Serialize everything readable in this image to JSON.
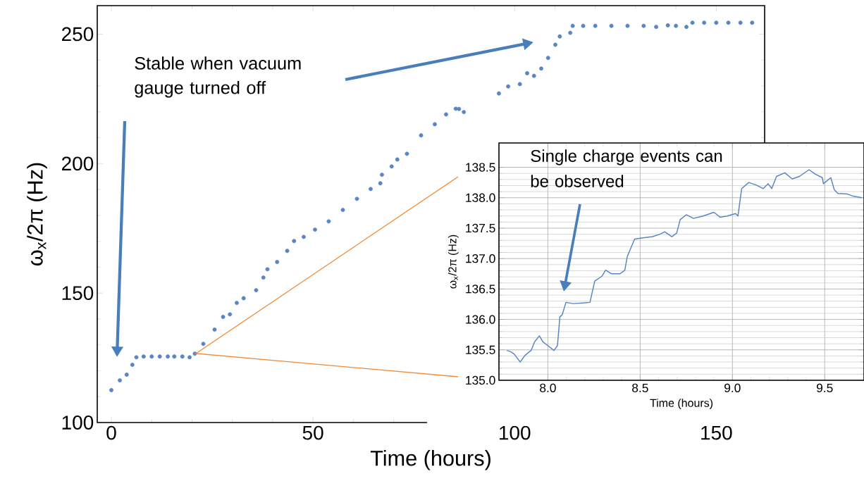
{
  "chart_data": [
    {
      "type": "scatter",
      "xlabel": "Time (hours)",
      "ylabel": "ω$_{x}$/2π (Hz)",
      "xlim": [
        -3.5,
        162
      ],
      "ylim": [
        100,
        261
      ],
      "xticks": [
        0,
        50,
        100,
        150
      ],
      "yticks": [
        100,
        150,
        200,
        250
      ],
      "color": "#5b84c4",
      "x": [
        0,
        2.1,
        3.8,
        5.2,
        6.2,
        8,
        10,
        12,
        14,
        15.6,
        17.6,
        19.4,
        20.7,
        22.8,
        25.6,
        27.7,
        29.4,
        31.1,
        32.8,
        35.9,
        37.7,
        38.7,
        41.1,
        43.6,
        45.3,
        47.7,
        50.5,
        53.9,
        57.4,
        60.9,
        64.3,
        66.7,
        67.1,
        69.5,
        70.9,
        73.3,
        76.8,
        80.2,
        83,
        85.4,
        86.2,
        87.4,
        96.1,
        98.4,
        101.3,
        103.1,
        104.8,
        106.6,
        108.3,
        110.1,
        111.2,
        113.8,
        114.4,
        117,
        120,
        124,
        128,
        132,
        135.1,
        138,
        140,
        142.6,
        144.1,
        147,
        150,
        153,
        156,
        158.9
      ],
      "values": [
        112.5,
        116.3,
        118.5,
        122.3,
        125.2,
        125.5,
        125.5,
        125.5,
        125.5,
        125.5,
        125.5,
        125.2,
        126.6,
        130.4,
        135.9,
        140.8,
        141.8,
        146.2,
        148,
        151.1,
        156,
        159.2,
        162,
        166.3,
        170.1,
        171.7,
        174.5,
        177.7,
        182.1,
        186.4,
        190.2,
        192.4,
        195.7,
        198.9,
        201.6,
        203.8,
        210.9,
        215.2,
        219,
        221.2,
        221.1,
        219.9,
        227.1,
        229.8,
        230.7,
        234.9,
        233.9,
        236.7,
        240.8,
        245.9,
        249.1,
        250.5,
        253.2,
        253.2,
        253.2,
        253.2,
        253.2,
        253.2,
        252.8,
        253.4,
        253.2,
        252.8,
        254.4,
        254.4,
        254.4,
        254.4,
        254.4,
        254.4
      ],
      "annotations": [
        "Stable when vacuum gauge turned off"
      ]
    },
    {
      "type": "line",
      "xlabel": "Time (hours)",
      "ylabel": "ω$_{x}$/2π (Hz)",
      "xlim": [
        7.735,
        9.713
      ],
      "ylim": [
        135,
        138.9
      ],
      "grid": true,
      "color": "#5b84c4",
      "xticks": [
        {
          "value": 8,
          "label": "8.0"
        },
        8.5,
        {
          "value": 9,
          "label": "9.0"
        },
        9.5
      ],
      "yticks": [
        {
          "value": 135,
          "label": "135.0"
        },
        135.5,
        {
          "value": 136,
          "label": "136.0"
        },
        136.5,
        {
          "value": 137,
          "label": "137.0"
        },
        137.5,
        {
          "value": 138,
          "label": "138.0"
        },
        138.5
      ],
      "x": [
        7.778,
        7.798,
        7.818,
        7.85,
        7.876,
        7.909,
        7.928,
        7.954,
        7.974,
        8.0,
        8.033,
        8.052,
        8.065,
        8.078,
        8.098,
        8.137,
        8.189,
        8.228,
        8.254,
        8.293,
        8.313,
        8.346,
        8.391,
        8.417,
        8.43,
        8.47,
        8.515,
        8.567,
        8.607,
        8.633,
        8.672,
        8.698,
        8.717,
        8.75,
        8.789,
        8.841,
        8.9,
        8.933,
        8.972,
        9.017,
        9.03,
        9.05,
        9.089,
        9.128,
        9.167,
        9.193,
        9.213,
        9.239,
        9.284,
        9.324,
        9.363,
        9.415,
        9.448,
        9.487,
        9.493,
        9.533,
        9.552,
        9.572,
        9.624,
        9.65,
        9.702
      ],
      "values": [
        135.49,
        135.47,
        135.43,
        135.3,
        135.41,
        135.49,
        135.63,
        135.73,
        135.63,
        135.57,
        135.49,
        135.57,
        136.04,
        136.08,
        136.28,
        136.26,
        136.27,
        136.28,
        136.63,
        136.71,
        136.81,
        136.75,
        136.75,
        136.81,
        137.03,
        137.32,
        137.34,
        137.36,
        137.4,
        137.44,
        137.36,
        137.42,
        137.64,
        137.72,
        137.66,
        137.7,
        137.76,
        137.68,
        137.7,
        137.74,
        137.7,
        138.15,
        138.25,
        138.21,
        138.15,
        138.23,
        138.15,
        138.35,
        138.41,
        138.31,
        138.35,
        138.46,
        138.39,
        138.33,
        138.23,
        138.33,
        138.13,
        138.07,
        138.06,
        138.03,
        138.0
      ],
      "annotations": [
        "Single charge events can be observed"
      ]
    }
  ]
}
